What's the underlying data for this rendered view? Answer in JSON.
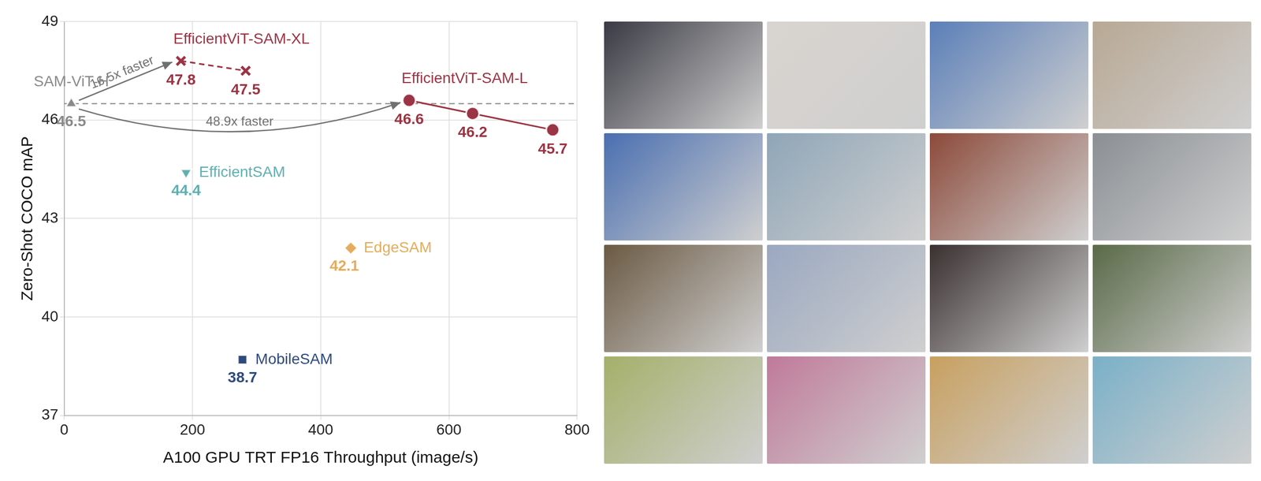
{
  "chart_data": {
    "type": "scatter",
    "x_label": "A100 GPU TRT FP16 Throughput (image/s)",
    "y_label": "Zero-Shot COCO mAP",
    "xlim": [
      0,
      800
    ],
    "xticks": [
      0,
      200,
      400,
      600,
      800
    ],
    "ylim": [
      37,
      49
    ],
    "yticks": [
      37,
      40,
      43,
      46,
      49
    ],
    "grid": true,
    "data_labels": true,
    "reference_line": {
      "value": 46.5,
      "line_style": "dashed"
    },
    "series": [
      {
        "name": "SAM-ViT-H",
        "color": "#8a8a8a",
        "marker": "triangle",
        "x": [
          11
        ],
        "values": [
          46.5
        ]
      },
      {
        "name": "EfficientViT-SAM-XL",
        "color": "#9b3444",
        "marker": "x",
        "line_style": "dashed",
        "x": [
          182,
          283
        ],
        "values": [
          47.8,
          47.5
        ]
      },
      {
        "name": "EfficientViT-SAM-L",
        "color": "#9b3444",
        "marker": "circle",
        "line_style": "solid",
        "x": [
          538,
          637,
          762
        ],
        "values": [
          46.6,
          46.2,
          45.7
        ]
      },
      {
        "name": "EfficientSAM",
        "color": "#5fb0b0",
        "marker": "triangle_down",
        "x": [
          190
        ],
        "values": [
          44.4
        ]
      },
      {
        "name": "EdgeSAM",
        "color": "#e3ad5c",
        "marker": "diamond",
        "x": [
          447
        ],
        "values": [
          42.1
        ]
      },
      {
        "name": "MobileSAM",
        "color": "#2e4a7c",
        "marker": "square",
        "x": [
          278
        ],
        "values": [
          38.7
        ]
      }
    ],
    "annotations": [
      {
        "text": "16.5x faster",
        "from": "SAM-ViT-H",
        "to": "EfficientViT-SAM-XL",
        "arrow": "straight"
      },
      {
        "text": "48.9x faster",
        "from": "SAM-ViT-H",
        "to": "EfficientViT-SAM-L",
        "arrow": "curved"
      }
    ]
  }
}
